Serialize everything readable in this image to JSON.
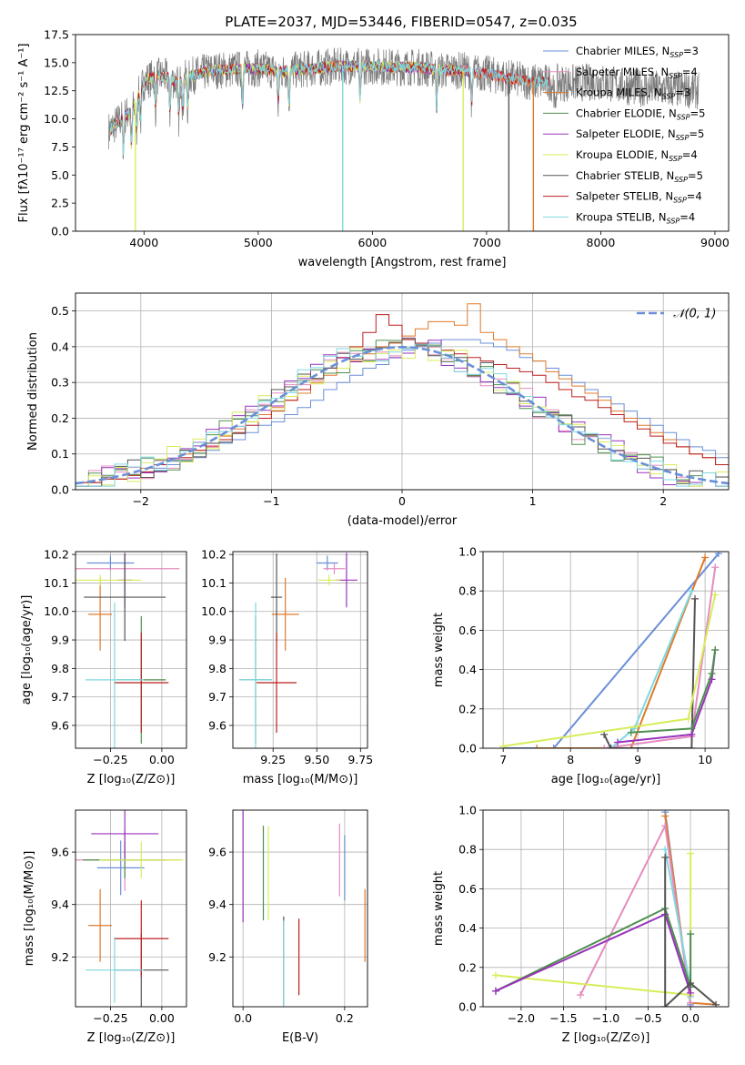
{
  "figure_title": "PLATE=2037, MJD=53446, FIBERID=0547, z=0.035",
  "colors": {
    "Chabrier MILES": "#6a8fd8",
    "Salpeter MILES": "#e48cbe",
    "Kroupa MILES": "#e07a2a",
    "Chabrier ELODIE": "#4f8f4f",
    "Salpeter ELODIE": "#9933bb",
    "Kroupa ELODIE": "#d8ec5a",
    "Chabrier STELIB": "#555555",
    "Salpeter STELIB": "#bb1f1f",
    "Kroupa STELIB": "#7fd8e0"
  },
  "chart_data": [
    {
      "type": "line",
      "title": "PLATE=2037, MJD=53446, FIBERID=0547, z=0.035",
      "xlabel": "wavelength [Angstrom, rest frame]",
      "ylabel": "Flux [fλ10⁻¹⁷ erg cm⁻² s⁻¹ A⁻¹]",
      "xlim": [
        3400,
        9120
      ],
      "ylim": [
        0,
        17.5
      ],
      "xticks": [
        4000,
        5000,
        6000,
        7000,
        8000,
        9000
      ],
      "yticks": [
        0.0,
        2.5,
        5.0,
        7.5,
        10.0,
        12.5,
        15.0,
        17.5
      ],
      "legend_position": "top-right",
      "series": [
        {
          "name": "Chabrier MILES, N_SSP=3",
          "label_main": "Chabrier MILES, N",
          "label_sub": "SSP",
          "label_tail": "=3"
        },
        {
          "name": "Salpeter MILES, N_SSP=4",
          "label_main": "Salpeter MILES, N",
          "label_sub": "SSP",
          "label_tail": "=4"
        },
        {
          "name": "Kroupa MILES, N_SSP=3",
          "label_main": "Kroupa MILES, N",
          "label_sub": "SSP",
          "label_tail": "=3"
        },
        {
          "name": "Chabrier ELODIE, N_SSP=5",
          "label_main": "Chabrier ELODIE, N",
          "label_sub": "SSP",
          "label_tail": "=5"
        },
        {
          "name": "Salpeter ELODIE, N_SSP=5",
          "label_main": "Salpeter ELODIE, N",
          "label_sub": "SSP",
          "label_tail": "=5"
        },
        {
          "name": "Kroupa ELODIE, N_SSP=4",
          "label_main": "Kroupa ELODIE, N",
          "label_sub": "SSP",
          "label_tail": "=4"
        },
        {
          "name": "Chabrier STELIB, N_SSP=5",
          "label_main": "Chabrier STELIB, N",
          "label_sub": "SSP",
          "label_tail": "=5"
        },
        {
          "name": "Salpeter STELIB, N_SSP=4",
          "label_main": "Salpeter STELIB, N",
          "label_sub": "SSP",
          "label_tail": "=4"
        },
        {
          "name": "Kroupa STELIB, N_SSP=4",
          "label_main": "Kroupa STELIB, N",
          "label_sub": "SSP",
          "label_tail": "=4"
        }
      ],
      "continuum": {
        "x": [
          3700,
          3800,
          3900,
          4000,
          4100,
          4200,
          4300,
          4400,
          4600,
          4800,
          5000,
          5200,
          5400,
          5600,
          5800,
          6000,
          6200,
          6400,
          6600,
          6800,
          7000,
          7200,
          7400,
          7600,
          7800,
          8000,
          8200,
          8400,
          8600,
          8800,
          8850
        ],
        "y": [
          9.0,
          10.0,
          10.8,
          13.3,
          13.8,
          13.7,
          13.2,
          13.8,
          14.3,
          14.4,
          14.5,
          14.2,
          14.4,
          14.6,
          14.7,
          14.7,
          14.6,
          14.6,
          14.3,
          14.3,
          14.0,
          13.6,
          13.3,
          13.2,
          13.2,
          13.3,
          12.9,
          12.7,
          12.6,
          12.6,
          12.5
        ]
      },
      "drop_features": [
        {
          "x": 3925,
          "color_of": "Kroupa ELODIE"
        },
        {
          "x": 5740,
          "color_of": "Kroupa STELIB"
        },
        {
          "x": 6795,
          "color_of": "Kroupa ELODIE"
        },
        {
          "x": 7195,
          "color_of": "Chabrier STELIB"
        },
        {
          "x": 7410,
          "color_of": "Kroupa MILES"
        }
      ]
    },
    {
      "type": "step",
      "xlabel": "(data-model)/error",
      "ylabel": "Normed distribution",
      "xlim": [
        -2.5,
        2.5
      ],
      "ylim": [
        0,
        0.55
      ],
      "xticks": [
        -2,
        -1,
        0,
        1,
        2
      ],
      "yticks": [
        0.0,
        0.1,
        0.2,
        0.3,
        0.4,
        0.5
      ],
      "bin_edges_start": -2.5,
      "bin_width": 0.1,
      "reference_curve": {
        "name": "N(0,1)",
        "label": "𝒩(0, 1)",
        "style": "dashed",
        "color": "#6a8fd8"
      },
      "legend_position": "top-right",
      "histograms": [
        {
          "name": "Chabrier MILES",
          "values": [
            0.02,
            0.02,
            0.03,
            0.03,
            0.04,
            0.05,
            0.06,
            0.07,
            0.08,
            0.09,
            0.11,
            0.13,
            0.14,
            0.16,
            0.18,
            0.19,
            0.21,
            0.23,
            0.25,
            0.28,
            0.3,
            0.32,
            0.34,
            0.35,
            0.37,
            0.39,
            0.4,
            0.41,
            0.42,
            0.42,
            0.42,
            0.41,
            0.4,
            0.39,
            0.37,
            0.36,
            0.34,
            0.32,
            0.3,
            0.28,
            0.26,
            0.24,
            0.22,
            0.2,
            0.18,
            0.16,
            0.14,
            0.12,
            0.11,
            0.09
          ]
        },
        {
          "name": "Kroupa MILES",
          "values": [
            0.02,
            0.02,
            0.03,
            0.03,
            0.04,
            0.06,
            0.07,
            0.08,
            0.1,
            0.11,
            0.13,
            0.15,
            0.17,
            0.19,
            0.21,
            0.23,
            0.25,
            0.27,
            0.3,
            0.32,
            0.34,
            0.36,
            0.38,
            0.4,
            0.41,
            0.43,
            0.45,
            0.47,
            0.47,
            0.46,
            0.52,
            0.44,
            0.42,
            0.4,
            0.38,
            0.36,
            0.33,
            0.31,
            0.29,
            0.27,
            0.25,
            0.22,
            0.2,
            0.18,
            0.16,
            0.14,
            0.12,
            0.1,
            0.09,
            0.07
          ]
        },
        {
          "name": "Salpeter STELIB",
          "values": [
            0.02,
            0.02,
            0.03,
            0.03,
            0.04,
            0.05,
            0.07,
            0.08,
            0.09,
            0.11,
            0.12,
            0.14,
            0.16,
            0.18,
            0.2,
            0.22,
            0.25,
            0.28,
            0.31,
            0.34,
            0.37,
            0.4,
            0.44,
            0.49,
            0.46,
            0.42,
            0.41,
            0.4,
            0.39,
            0.38,
            0.37,
            0.36,
            0.35,
            0.34,
            0.33,
            0.32,
            0.3,
            0.28,
            0.26,
            0.25,
            0.23,
            0.21,
            0.19,
            0.17,
            0.15,
            0.13,
            0.12,
            0.1,
            0.09,
            0.07
          ]
        }
      ]
    },
    {
      "type": "errorbar",
      "xlabel": "Z [log₁₀(Z/Z⊙)]",
      "ylabel": "age  [log₁₀(age/yr)]",
      "xlim": [
        -0.42,
        0.12
      ],
      "ylim": [
        9.52,
        10.21
      ],
      "xticks": [
        -0.25,
        0.0
      ],
      "yticks": [
        9.6,
        9.7,
        9.8,
        9.9,
        10.0,
        10.1,
        10.2
      ],
      "points": [
        {
          "name": "Chabrier MILES",
          "x": -0.25,
          "y": 10.17
        },
        {
          "name": "Salpeter MILES",
          "x": -0.18,
          "y": 10.15
        },
        {
          "name": "Kroupa MILES",
          "x": -0.3,
          "y": 9.99
        },
        {
          "name": "Chabrier ELODIE",
          "x": -0.1,
          "y": 9.76
        },
        {
          "name": "Salpeter ELODIE",
          "x": -0.18,
          "y": 10.11
        },
        {
          "name": "Kroupa ELODIE",
          "x": -0.3,
          "y": 10.11
        },
        {
          "name": "Chabrier STELIB",
          "x": -0.18,
          "y": 10.05
        },
        {
          "name": "Salpeter STELIB",
          "x": -0.1,
          "y": 9.75
        },
        {
          "name": "Kroupa STELIB",
          "x": -0.23,
          "y": 9.76
        }
      ]
    },
    {
      "type": "errorbar",
      "xlabel": "mass [log₁₀(M/M⊙)]",
      "ylabel": "",
      "xlim": [
        9.02,
        9.79
      ],
      "ylim": [
        9.52,
        10.21
      ],
      "xticks": [
        9.25,
        9.5,
        9.75
      ],
      "yticks": [
        9.6,
        9.7,
        9.8,
        9.9,
        10.0,
        10.1,
        10.2
      ],
      "points": [
        {
          "name": "Chabrier MILES",
          "x": 9.56,
          "y": 10.17
        },
        {
          "name": "Salpeter MILES",
          "x": 9.6,
          "y": 10.15
        },
        {
          "name": "Kroupa MILES",
          "x": 9.32,
          "y": 9.99
        },
        {
          "name": "Chabrier ELODIE",
          "x": 9.15,
          "y": 9.76
        },
        {
          "name": "Salpeter ELODIE",
          "x": 9.67,
          "y": 10.11
        },
        {
          "name": "Kroupa ELODIE",
          "x": 9.57,
          "y": 10.11
        },
        {
          "name": "Chabrier STELIB",
          "x": 9.27,
          "y": 10.05
        },
        {
          "name": "Salpeter STELIB",
          "x": 9.27,
          "y": 9.75
        },
        {
          "name": "Kroupa STELIB",
          "x": 9.15,
          "y": 9.76
        }
      ]
    },
    {
      "type": "line",
      "xlabel": "age  [log₁₀(age/yr)]",
      "ylabel": "mass weight",
      "xlim": [
        6.7,
        10.35
      ],
      "ylim": [
        0,
        1
      ],
      "xticks": [
        7,
        8,
        9,
        10
      ],
      "yticks": [
        0.0,
        0.2,
        0.4,
        0.6,
        0.8,
        1.0
      ],
      "series": [
        {
          "name": "Chabrier MILES",
          "x": [
            7.0,
            7.75,
            10.2
          ],
          "y": [
            0.0,
            0.0,
            0.99
          ]
        },
        {
          "name": "Kroupa MILES",
          "x": [
            7.5,
            8.9,
            10.0
          ],
          "y": [
            0.0,
            0.0,
            0.97
          ]
        },
        {
          "name": "Salpeter MILES",
          "x": [
            8.5,
            9.8,
            10.15
          ],
          "y": [
            0.0,
            0.06,
            0.92
          ]
        },
        {
          "name": "Kroupa STELIB",
          "x": [
            8.6,
            8.95,
            9.8
          ],
          "y": [
            0.0,
            0.1,
            0.8
          ]
        },
        {
          "name": "Chabrier STELIB",
          "x": [
            8.5,
            8.6,
            9.8,
            9.85
          ],
          "y": [
            0.07,
            0.0,
            0.0,
            0.76
          ]
        },
        {
          "name": "Kroupa ELODIE",
          "x": [
            7.0,
            9.75,
            10.15
          ],
          "y": [
            0.01,
            0.15,
            0.78
          ]
        },
        {
          "name": "Salpeter ELODIE",
          "x": [
            8.7,
            9.8,
            10.1,
            10.15
          ],
          "y": [
            0.03,
            0.07,
            0.35,
            0.5
          ]
        },
        {
          "name": "Chabrier ELODIE",
          "x": [
            8.9,
            9.8,
            10.1,
            10.15
          ],
          "y": [
            0.08,
            0.1,
            0.38,
            0.5
          ]
        }
      ]
    },
    {
      "type": "errorbar",
      "xlabel": "Z [log₁₀(Z/Z⊙)]",
      "ylabel": "mass [log₁₀(M/M⊙)]",
      "xlim": [
        -0.42,
        0.12
      ],
      "ylim": [
        9.01,
        9.76
      ],
      "xticks": [
        -0.25,
        0.0
      ],
      "yticks": [
        9.2,
        9.4,
        9.6
      ],
      "points": [
        {
          "name": "Chabrier MILES",
          "x": -0.2,
          "y": 9.54
        },
        {
          "name": "Salpeter MILES",
          "x": -0.18,
          "y": 9.57
        },
        {
          "name": "Kroupa MILES",
          "x": -0.3,
          "y": 9.32
        },
        {
          "name": "Chabrier ELODIE",
          "x": -0.18,
          "y": 9.57
        },
        {
          "name": "Salpeter ELODIE",
          "x": -0.18,
          "y": 9.67
        },
        {
          "name": "Kroupa ELODIE",
          "x": -0.1,
          "y": 9.57
        },
        {
          "name": "Chabrier STELIB",
          "x": -0.1,
          "y": 9.15
        },
        {
          "name": "Salpeter STELIB",
          "x": -0.1,
          "y": 9.27
        },
        {
          "name": "Kroupa STELIB",
          "x": -0.23,
          "y": 9.15
        }
      ]
    },
    {
      "type": "errorbar",
      "xlabel": "E(B-V)",
      "ylabel": "",
      "xlim": [
        -0.02,
        0.245
      ],
      "ylim": [
        9.01,
        9.76
      ],
      "xticks": [
        0.0,
        0.2
      ],
      "yticks": [
        9.2,
        9.4,
        9.6
      ],
      "points": [
        {
          "name": "Chabrier MILES",
          "x": 0.2,
          "y": 9.54
        },
        {
          "name": "Salpeter MILES",
          "x": 0.19,
          "y": 9.57
        },
        {
          "name": "Kroupa MILES",
          "x": 0.24,
          "y": 9.32
        },
        {
          "name": "Chabrier ELODIE",
          "x": 0.04,
          "y": 9.52
        },
        {
          "name": "Salpeter ELODIE",
          "x": 0.0,
          "y": 9.61
        },
        {
          "name": "Kroupa ELODIE",
          "x": 0.05,
          "y": 9.52
        },
        {
          "name": "Chabrier STELIB",
          "x": 0.08,
          "y": 9.16
        },
        {
          "name": "Salpeter STELIB",
          "x": 0.11,
          "y": 9.2
        },
        {
          "name": "Kroupa STELIB",
          "x": 0.08,
          "y": 9.13
        }
      ]
    },
    {
      "type": "line",
      "xlabel": "Z [log₁₀(Z/Z⊙)]",
      "ylabel": "mass weight",
      "xlim": [
        -2.45,
        0.45
      ],
      "ylim": [
        0,
        1
      ],
      "xticks": [
        -2.0,
        -1.5,
        -1.0,
        -0.5,
        0.0
      ],
      "yticks": [
        0.0,
        0.2,
        0.4,
        0.6,
        0.8,
        1.0
      ],
      "series": [
        {
          "name": "Chabrier MILES",
          "x": [
            -0.3,
            0.0,
            0.0
          ],
          "y": [
            0.99,
            0.01,
            0.0
          ]
        },
        {
          "name": "Kroupa MILES",
          "x": [
            -0.3,
            0.0,
            0.3
          ],
          "y": [
            0.97,
            0.02,
            0.01
          ]
        },
        {
          "name": "Salpeter MILES",
          "x": [
            -1.3,
            -0.3,
            0.0
          ],
          "y": [
            0.06,
            0.92,
            0.02
          ]
        },
        {
          "name": "Kroupa STELIB",
          "x": [
            -0.3,
            0.0,
            0.0
          ],
          "y": [
            0.8,
            0.1,
            0.05
          ]
        },
        {
          "name": "Kroupa ELODIE",
          "x": [
            -2.3,
            0.0,
            0.0
          ],
          "y": [
            0.16,
            0.06,
            0.78
          ]
        },
        {
          "name": "Chabrier ELODIE",
          "x": [
            -2.3,
            -0.3,
            0.0,
            0.0
          ],
          "y": [
            0.08,
            0.5,
            0.1,
            0.37
          ]
        },
        {
          "name": "Salpeter ELODIE",
          "x": [
            -2.3,
            -0.3,
            0.0
          ],
          "y": [
            0.08,
            0.47,
            0.07
          ]
        },
        {
          "name": "Chabrier STELIB",
          "x": [
            -0.3,
            -0.3,
            0.0,
            0.3
          ],
          "y": [
            0.76,
            0.0,
            0.12,
            0.01
          ]
        }
      ]
    }
  ]
}
